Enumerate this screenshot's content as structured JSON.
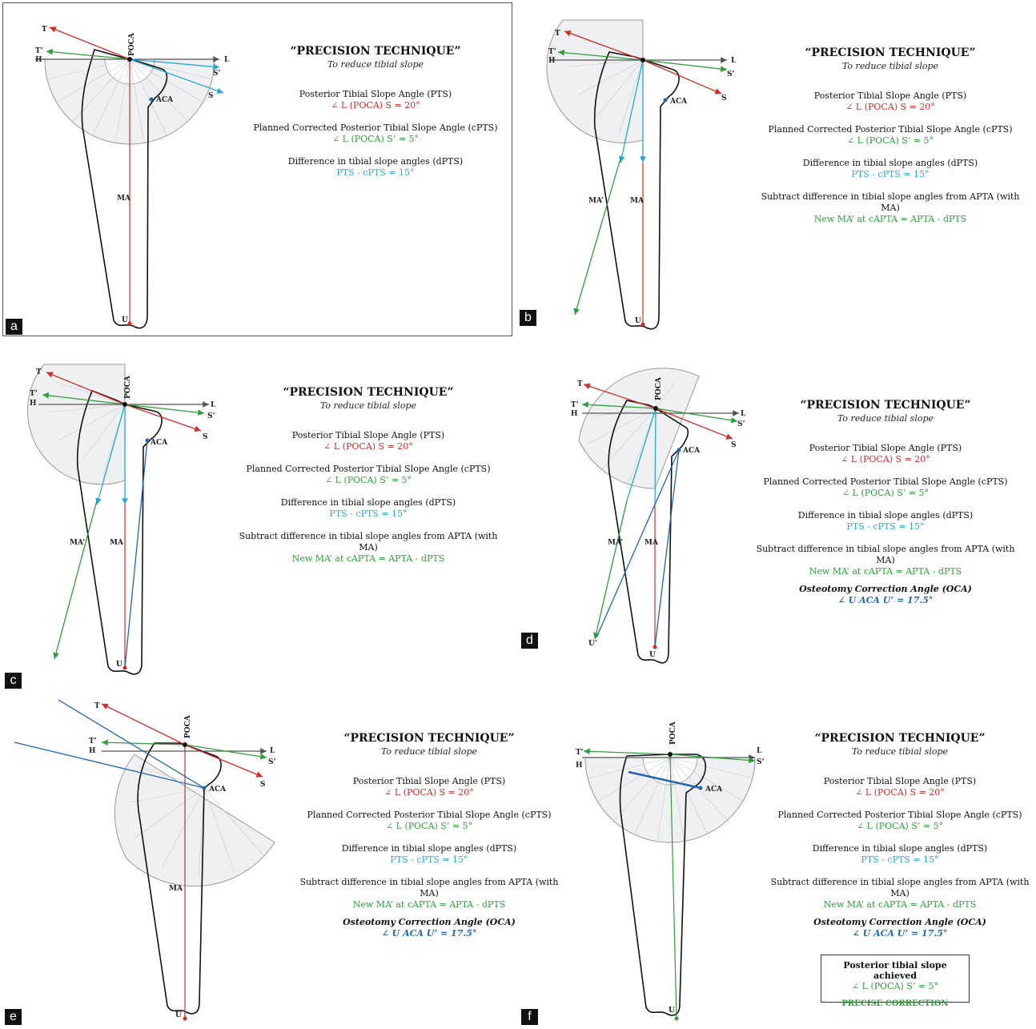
{
  "panels": {
    "a": {
      "letter": "a",
      "title": "“PRECISION TECHNIQUE”",
      "subtitle": "To reduce tibial slope",
      "pts_label": "Posterior Tibial Slope Angle (PTS)",
      "pts_value": "∠ L (POCA) S = 20°",
      "cpts_label": "Planned Corrected Posterior Tibial Slope Angle (cPTS)",
      "cpts_value": "∠ L (POCA) S’ = 5°",
      "dpts_label": "Difference in tibial slope angles (dPTS)",
      "dpts_value": "PTS - cPTS = 15°",
      "points": {
        "t": "T",
        "t2": "T’",
        "h": "H",
        "poca": "POCA",
        "l": "L",
        "s2": "S’",
        "s": "S",
        "aca": "ACA",
        "ma": "MA",
        "u": "U"
      }
    },
    "b": {
      "letter": "b",
      "title": "“PRECISION TECHNIQUE”",
      "subtitle": "To reduce tibial slope",
      "pts_label": "Posterior Tibial Slope Angle (PTS)",
      "pts_value": "∠ L (POCA) S = 20°",
      "cpts_label": "Planned Corrected Posterior Tibial Slope Angle (cPTS)",
      "cpts_value": "∠ L (POCA) S’ = 5°",
      "dpts_label": "Difference in tibial slope angles (dPTS)",
      "dpts_value": "PTS - cPTS = 15°",
      "sub_label": "Subtract difference in tibial slope angles from APTA (with MA)",
      "sub_value": "New MA’ at cAPTA = APTA - dPTS",
      "points": {
        "t": "T",
        "t2": "T’",
        "h": "H",
        "l": "L",
        "s2": "S’",
        "s": "S",
        "aca": "ACA",
        "ma2": "MA’",
        "ma": "MA",
        "u": "U"
      }
    },
    "c": {
      "letter": "c",
      "title": "“PRECISION TECHNIQUE”",
      "subtitle": "To reduce tibial slope",
      "pts_label": "Posterior Tibial Slope Angle (PTS)",
      "pts_value": "∠ L (POCA) S = 20°",
      "cpts_label": "Planned Corrected Posterior Tibial Slope Angle (cPTS)",
      "cpts_value": "∠ L (POCA) S’ = 5°",
      "dpts_label": "Difference in tibial slope angles (dPTS)",
      "dpts_value": "PTS - cPTS = 15°",
      "sub_label": "Subtract difference in tibial slope angles from APTA (with MA)",
      "sub_value": "New MA’ at cAPTA = APTA - dPTS",
      "points": {
        "t": "T",
        "t2": "T’",
        "h": "H",
        "poca": "POCA",
        "l": "L",
        "s2": "S’",
        "s": "S",
        "aca": "ACA",
        "ma2": "MA’",
        "ma": "MA",
        "u": "U"
      }
    },
    "d": {
      "letter": "d",
      "title": "“PRECISION TECHNIQUE”",
      "subtitle": "To reduce tibial slope",
      "pts_label": "Posterior Tibial Slope Angle (PTS)",
      "pts_value": "∠ L (POCA) S = 20°",
      "cpts_label": "Planned Corrected Posterior Tibial Slope Angle (cPTS)",
      "cpts_value": "∠ L (POCA) S’ = 5°",
      "dpts_label": "Difference in tibial slope angles (dPTS)",
      "dpts_value": "PTS - cPTS = 15°",
      "sub_label": "Subtract difference in tibial slope angles from APTA (with MA)",
      "sub_value": "New MA’ at cAPTA = APTA - dPTS",
      "oca_label": "Osteotomy Correction Angle (OCA)",
      "oca_value": "∠ U ACA U’ = 17.5°",
      "points": {
        "t": "T",
        "t2": "T’",
        "h": "H",
        "poca": "POCA",
        "l": "L",
        "s2": "S’",
        "s": "S",
        "aca": "ACA",
        "ma2": "MA’",
        "ma": "MA",
        "u": "U",
        "u2": "U’"
      }
    },
    "e": {
      "letter": "e",
      "title": "“PRECISION TECHNIQUE”",
      "subtitle": "To reduce tibial slope",
      "pts_label": "Posterior Tibial Slope Angle (PTS)",
      "pts_value": "∠ L (POCA) S = 20°",
      "cpts_label": "Planned Corrected Posterior Tibial Slope Angle (cPTS)",
      "cpts_value": "∠ L (POCA) S’ = 5°",
      "dpts_label": "Difference in tibial slope angles (dPTS)",
      "dpts_value": "PTS - cPTS = 15°",
      "sub_label": "Subtract difference in tibial slope angles from APTA (with MA)",
      "sub_value": "New MA’ at cAPTA = APTA - dPTS",
      "oca_label": "Osteotomy Correction Angle (OCA)",
      "oca_value": "∠ U ACA U’ = 17.5°",
      "points": {
        "t": "T",
        "t2": "T’",
        "h": "H",
        "poca": "POCA",
        "l": "L",
        "s2": "S’",
        "s": "S",
        "aca": "ACA",
        "ma": "MA",
        "u": "U"
      }
    },
    "f": {
      "letter": "f",
      "title": "“PRECISION TECHNIQUE”",
      "subtitle": "To reduce tibial slope",
      "pts_label": "Posterior Tibial Slope Angle (PTS)",
      "pts_value": "∠ L (POCA) S = 20°",
      "cpts_label": "Planned Corrected Posterior Tibial Slope Angle (cPTS)",
      "cpts_value": "∠ L (POCA) S’ = 5°",
      "dpts_label": "Difference in tibial slope angles (dPTS)",
      "dpts_value": "PTS - cPTS = 15°",
      "sub_label": "Subtract difference in tibial slope angles from APTA (with MA)",
      "sub_value": "New MA’ at cAPTA = APTA - dPTS",
      "oca_label": "Osteotomy Correction Angle (OCA)",
      "oca_value": "∠ U ACA U’ = 17.5°",
      "result_label": "Posterior tibial slope achieved",
      "result_value": "∠ L (POCA) S’ = 5°",
      "result_note": "PRECISE CORRECTION",
      "points": {
        "t2": "T’",
        "h": "H",
        "poca": "POCA",
        "l": "L",
        "s2": "S’",
        "aca": "ACA",
        "u": "U"
      }
    }
  },
  "colors": {
    "red": "#d42a2a",
    "green": "#2e9e3a",
    "cyan": "#27a8d6",
    "blue": "#2265b0",
    "gray": "#555555",
    "bone": "#111111"
  }
}
